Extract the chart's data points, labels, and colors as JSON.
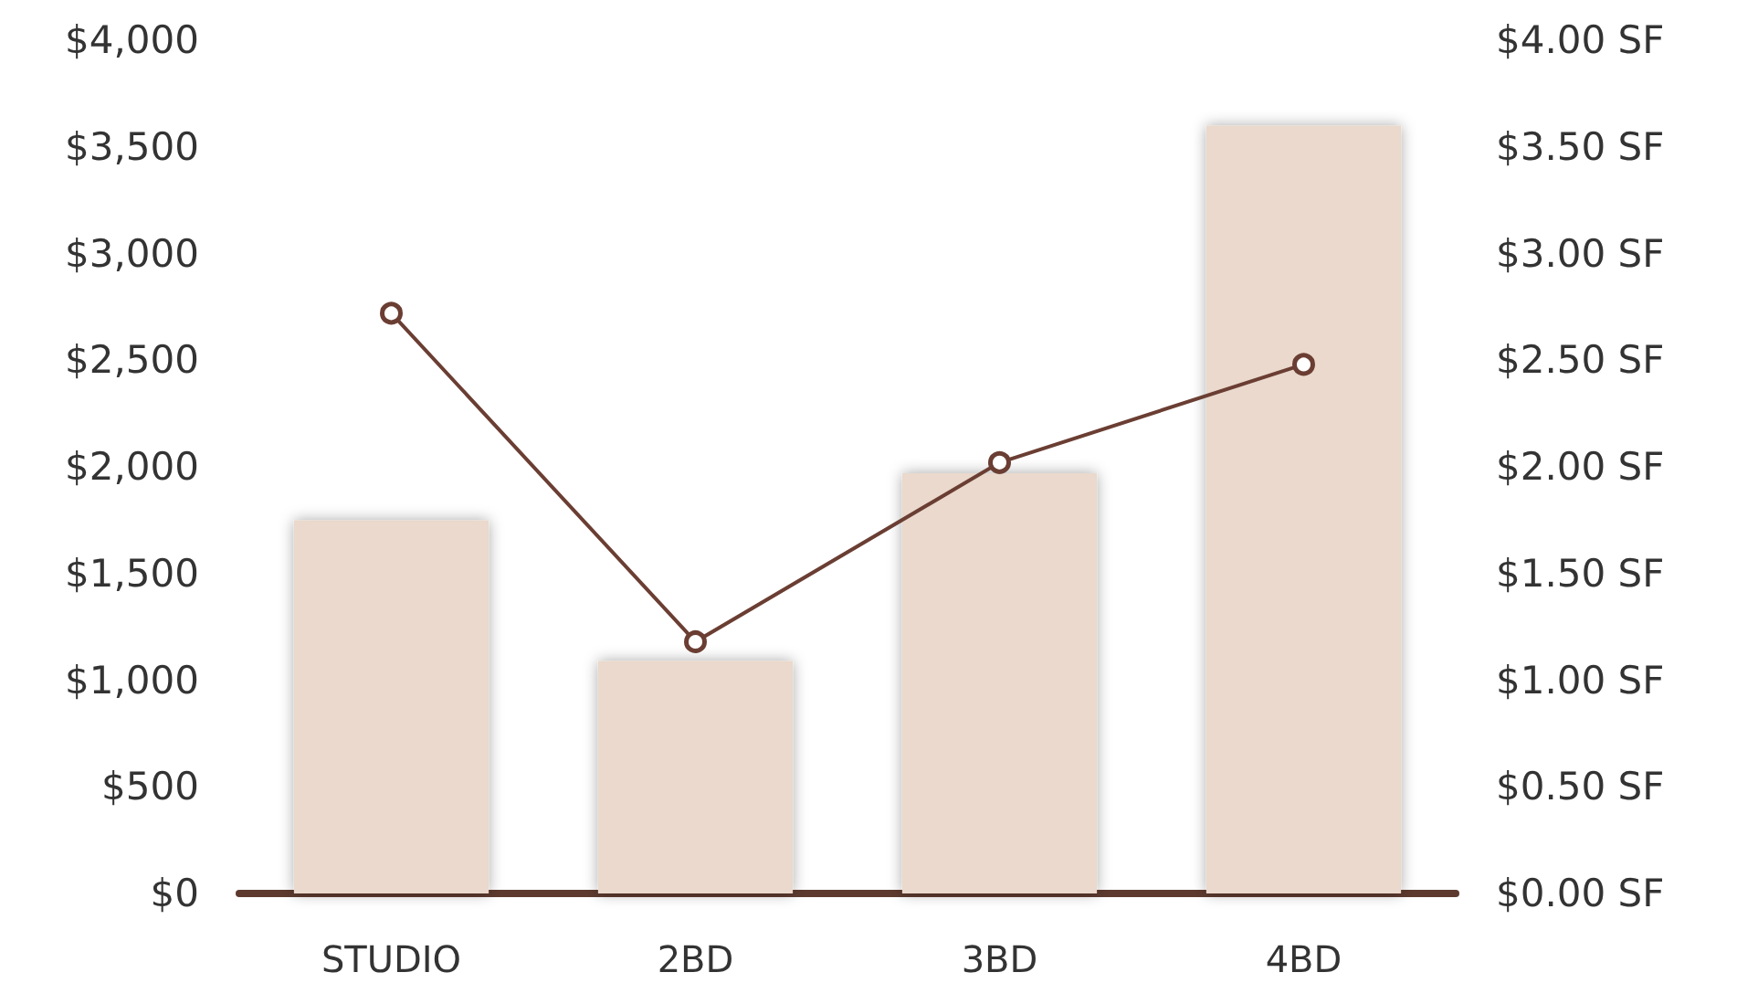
{
  "chart_data": {
    "type": "bar",
    "categories": [
      "STUDIO",
      "2BD",
      "3BD",
      "4BD"
    ],
    "series": [
      {
        "color": "#ead9cc",
        "values": [
          1750,
          1090,
          1970,
          3600
        ]
      },
      {
        "type": "line",
        "axis": "y2",
        "color": "#6b3e33",
        "values": [
          2.72,
          1.18,
          2.02,
          2.48
        ]
      }
    ],
    "ylim": [
      0,
      4000
    ],
    "yticks": [
      {
        "value": 0,
        "label": "$0"
      },
      {
        "value": 500,
        "label": "$500"
      },
      {
        "value": 1000,
        "label": "$1,000"
      },
      {
        "value": 1500,
        "label": "$1,500"
      },
      {
        "value": 2000,
        "label": "$2,000"
      },
      {
        "value": 2500,
        "label": "$2,500"
      },
      {
        "value": 3000,
        "label": "$3,000"
      },
      {
        "value": 3500,
        "label": "$3,500"
      },
      {
        "value": 4000,
        "label": "$4,000"
      }
    ],
    "y2lim": [
      0,
      4
    ],
    "y2ticks": [
      {
        "value": 0,
        "label": "$0.00 SF"
      },
      {
        "value": 0.5,
        "label": "$0.50 SF"
      },
      {
        "value": 1,
        "label": "$1.00 SF"
      },
      {
        "value": 1.5,
        "label": "$1.50 SF"
      },
      {
        "value": 2,
        "label": "$2.00 SF"
      },
      {
        "value": 2.5,
        "label": "$2.50 SF"
      },
      {
        "value": 3,
        "label": "$3.00 SF"
      },
      {
        "value": 3.5,
        "label": "$3.50 SF"
      },
      {
        "value": 4,
        "label": "$4.00 SF"
      }
    ],
    "grid": false,
    "marker": "circle",
    "line_style": "solid"
  }
}
